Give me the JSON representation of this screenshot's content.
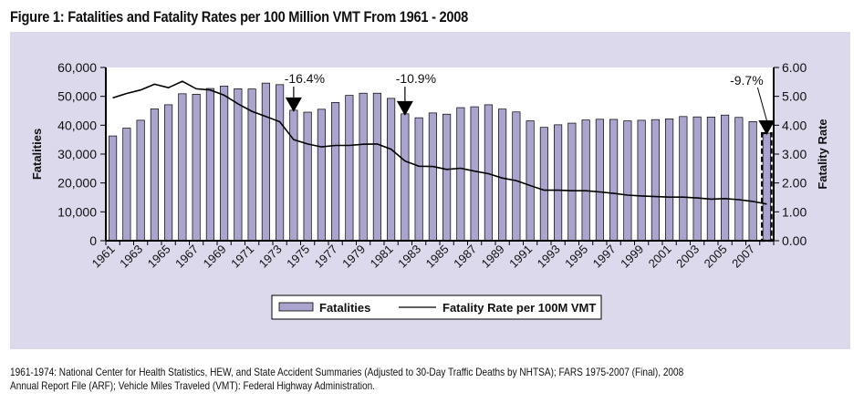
{
  "figure": {
    "title": "Figure 1: Fatalities and Fatality Rates per 100 Million VMT From 1961 - 2008",
    "source_line1": "1961-1974: National Center for Health Statistics, HEW, and State Accident Summaries (Adjusted to 30-Day Traffic Deaths by NHTSA); FARS 1975-2007 (Final), 2008",
    "source_line2": "Annual Report File (ARF); Vehicle Miles Traveled (VMT): Federal Highway Administration."
  },
  "chart_data": {
    "type": "bar",
    "title": "Figure 1: Fatalities and Fatality Rates per 100 Million VMT From 1961 - 2008",
    "xlabel": "",
    "ylabel": "Fatalities",
    "y2label": "Fatality Rate",
    "ylim": [
      0,
      60000
    ],
    "y2lim": [
      0,
      6
    ],
    "yticks": [
      "0",
      "10,000",
      "20,000",
      "30,000",
      "40,000",
      "50,000",
      "60,000"
    ],
    "y2ticks": [
      "0.00",
      "1.00",
      "2.00",
      "3.00",
      "4.00",
      "5.00",
      "6.00"
    ],
    "categories": [
      1961,
      1962,
      1963,
      1964,
      1965,
      1966,
      1967,
      1968,
      1969,
      1970,
      1971,
      1972,
      1973,
      1974,
      1975,
      1976,
      1977,
      1978,
      1979,
      1980,
      1981,
      1982,
      1983,
      1984,
      1985,
      1986,
      1987,
      1988,
      1989,
      1990,
      1991,
      1992,
      1993,
      1994,
      1995,
      1996,
      1997,
      1998,
      1999,
      2000,
      2001,
      2002,
      2003,
      2004,
      2005,
      2006,
      2007,
      2008
    ],
    "xtick_labels": [
      "1961",
      "1963",
      "1965",
      "1967",
      "1969",
      "1971",
      "1973",
      "1975",
      "1977",
      "1979",
      "1981",
      "1983",
      "1985",
      "1987",
      "1989",
      "1991",
      "1993",
      "1995",
      "1997",
      "1999",
      "2001",
      "2003",
      "2005",
      "2007"
    ],
    "series": [
      {
        "name": "Fatalities",
        "type": "bar",
        "axis": "left",
        "color": "#aaa5cf",
        "values": [
          36285,
          38980,
          41723,
          45645,
          47089,
          50894,
          50724,
          52725,
          53543,
          52627,
          52542,
          54589,
          54052,
          45196,
          44525,
          45523,
          47878,
          50331,
          51093,
          51091,
          49301,
          43945,
          42589,
          44257,
          43825,
          46087,
          46390,
          47087,
          45582,
          44599,
          41508,
          39250,
          40150,
          40716,
          41817,
          42065,
          42013,
          41501,
          41717,
          41945,
          42196,
          43005,
          42884,
          42836,
          43510,
          42708,
          41259,
          37261
        ]
      },
      {
        "name": "Fatality Rate per 100M VMT",
        "type": "line",
        "axis": "right",
        "color": "#000000",
        "values": [
          4.95,
          5.1,
          5.22,
          5.42,
          5.3,
          5.52,
          5.26,
          5.22,
          5.04,
          4.74,
          4.48,
          4.3,
          4.12,
          3.5,
          3.35,
          3.25,
          3.3,
          3.3,
          3.34,
          3.35,
          3.17,
          2.76,
          2.58,
          2.57,
          2.47,
          2.51,
          2.41,
          2.32,
          2.17,
          2.08,
          1.91,
          1.75,
          1.75,
          1.73,
          1.73,
          1.69,
          1.64,
          1.58,
          1.55,
          1.53,
          1.51,
          1.51,
          1.48,
          1.44,
          1.46,
          1.42,
          1.36,
          1.27
        ]
      }
    ],
    "annotations": [
      {
        "text": "-16.4%",
        "year": 1974
      },
      {
        "text": "-10.9%",
        "year": 1982
      },
      {
        "text": "-9.7%",
        "year": 2008
      }
    ],
    "highlight": {
      "year": 2008,
      "style": "dashed-outline"
    },
    "legend": {
      "position": "bottom-center",
      "entries": [
        "Fatalities",
        "Fatality Rate per 100M VMT"
      ]
    },
    "grid": false
  }
}
